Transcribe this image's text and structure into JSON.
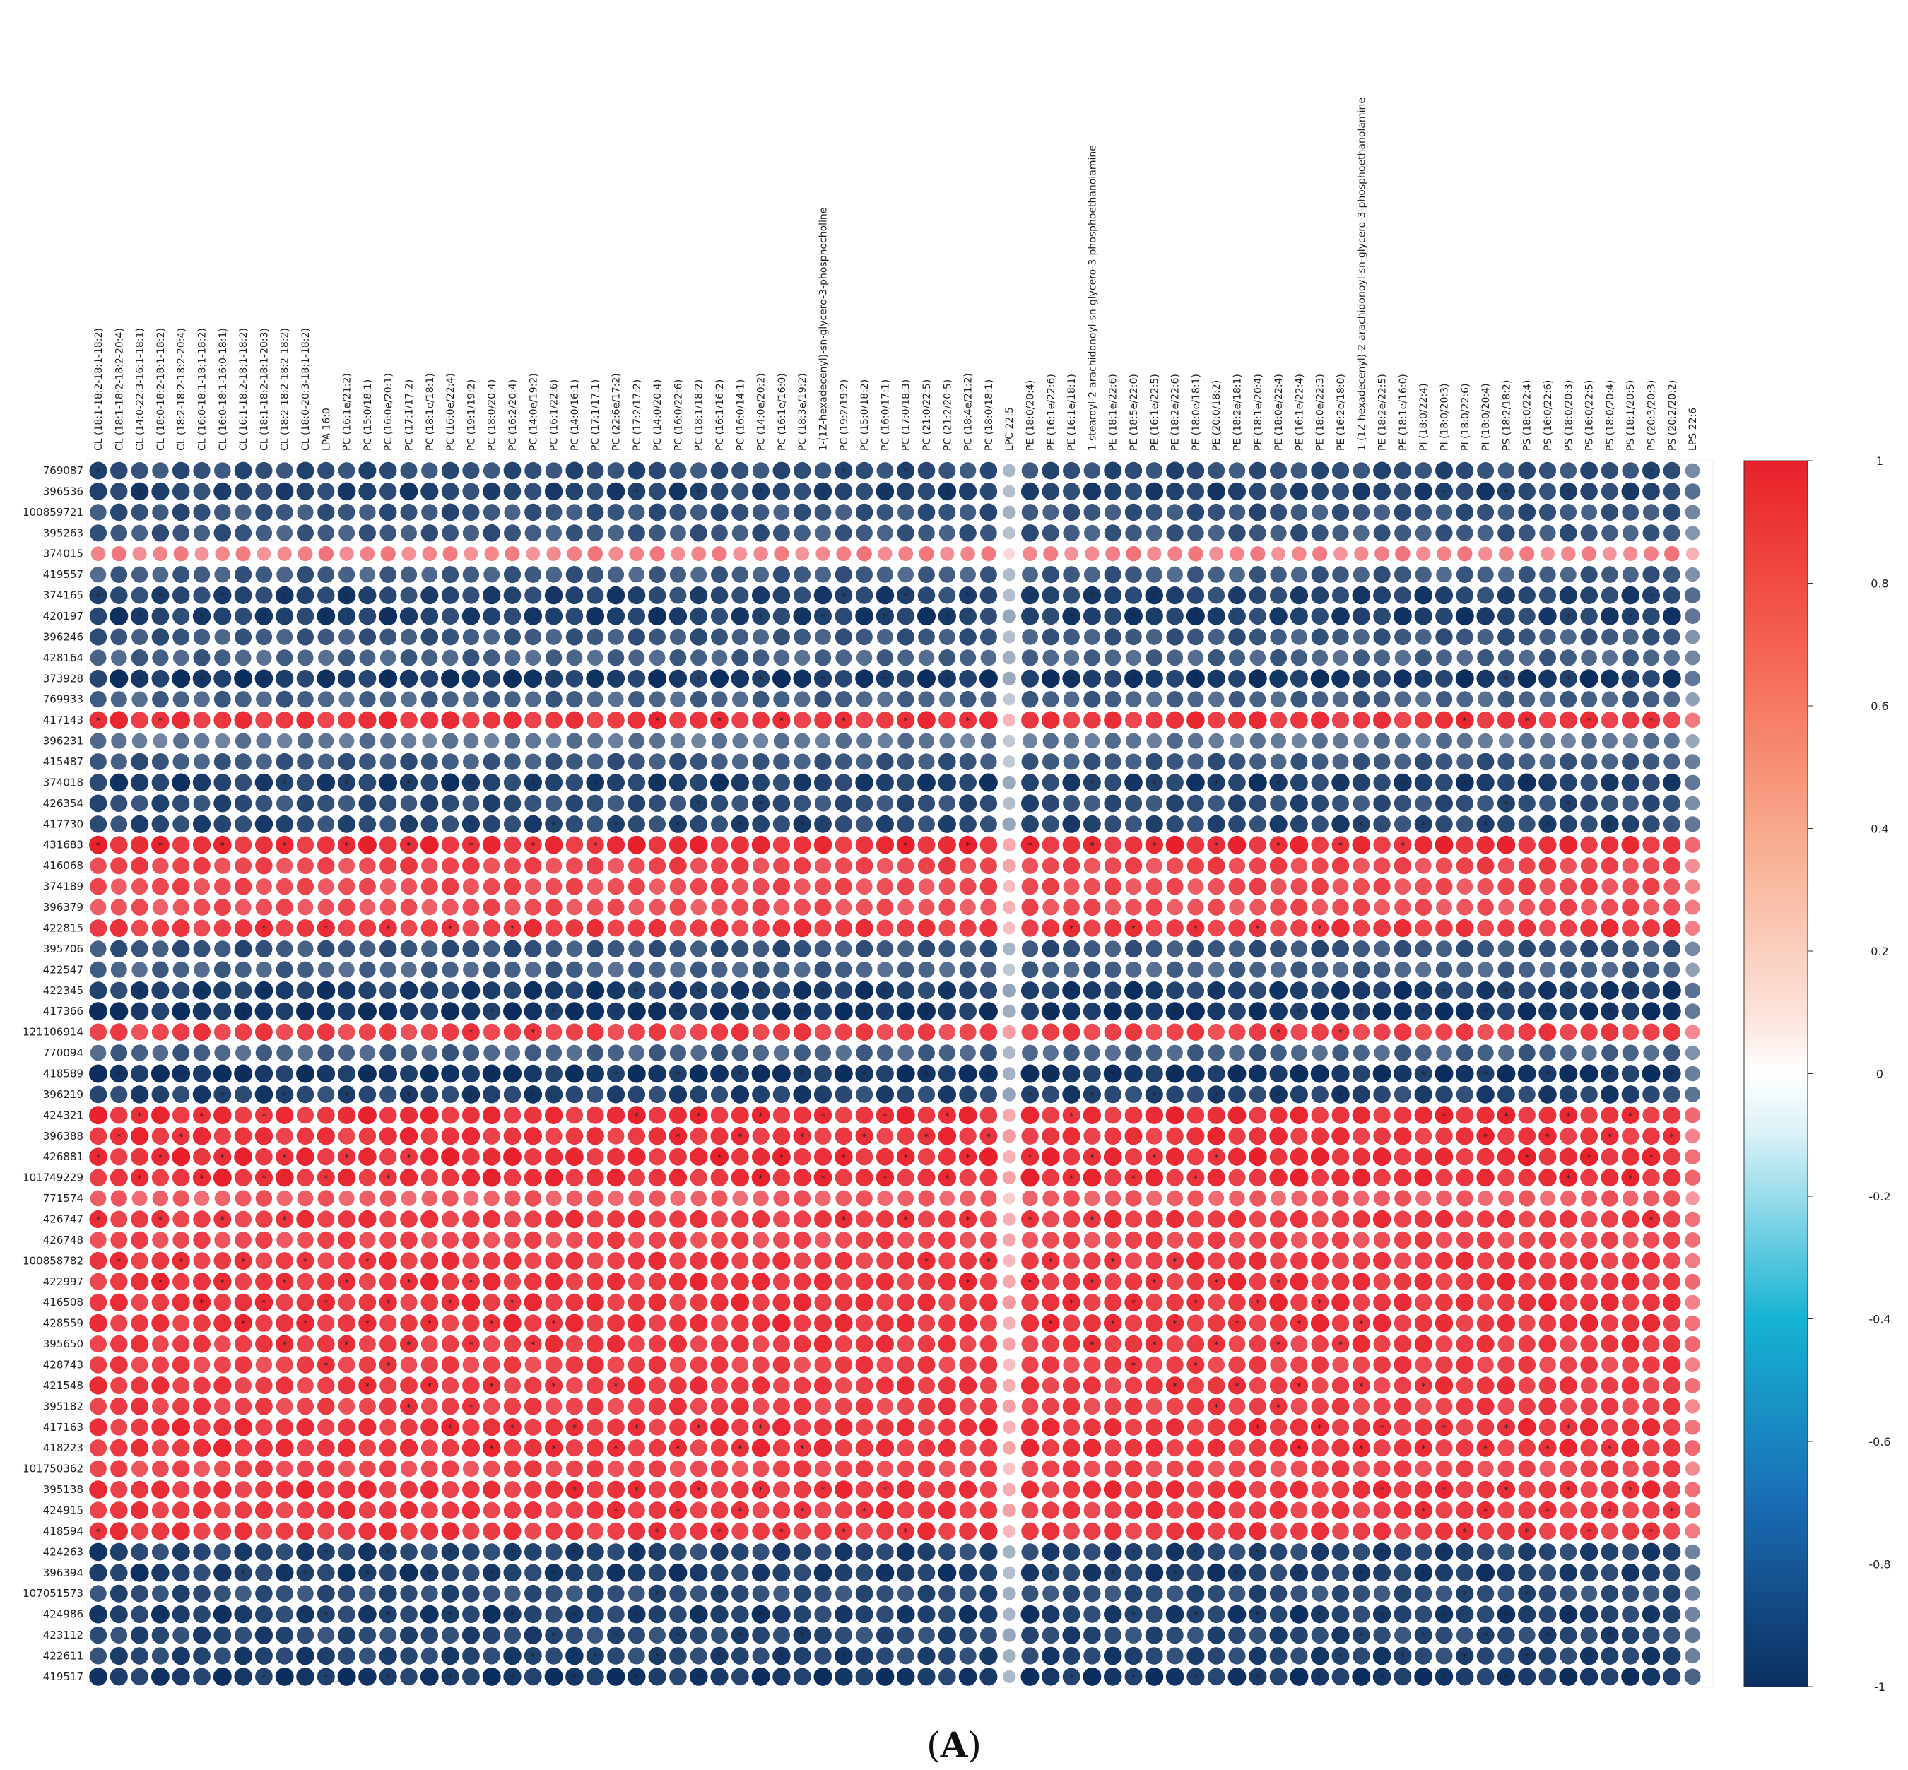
{
  "chart_data": {
    "type": "heatmap",
    "title": "",
    "caption": {
      "prefix": "(",
      "letter": "A",
      "suffix": ")"
    },
    "rows": [
      "769087",
      "396536",
      "100859721",
      "395263",
      "374015",
      "419557",
      "374165",
      "420197",
      "396246",
      "428164",
      "373928",
      "769933",
      "417143",
      "396231",
      "415487",
      "374018",
      "426354",
      "417730",
      "431683",
      "416068",
      "374189",
      "396379",
      "422815",
      "395706",
      "422547",
      "422345",
      "417366",
      "121106914",
      "770094",
      "418589",
      "396219",
      "424321",
      "396388",
      "426881",
      "101749229",
      "771574",
      "426747",
      "426748",
      "100858782",
      "422997",
      "416508",
      "428559",
      "395650",
      "428743",
      "421548",
      "395182",
      "417163",
      "418223",
      "101750362",
      "395138",
      "424915",
      "418594",
      "424263",
      "396394",
      "107051573",
      "424986",
      "423112",
      "422611",
      "419517"
    ],
    "columns": [
      "CL (18:1-18:2-18:1-18:2)",
      "CL (18:1-18:2-18:2-20:4)",
      "CL (14:0-22:3-16:1-18:1)",
      "CL (18:0-18:2-18:1-18:2)",
      "CL (18:2-18:2-18:2-20:4)",
      "CL (16:0-18:1-18:1-18:2)",
      "CL (16:0-18:1-16:0-18:1)",
      "CL (16:1-18:2-18:1-18:2)",
      "CL (18:1-18:2-18:1-20:3)",
      "CL (18:2-18:2-18:2-18:2)",
      "CL (18:0-20:3-18:1-18:2)",
      "LPA 16:0",
      "PC (16:1e/21:2)",
      "PC (15:0/18:1)",
      "PC (16:0e/20:1)",
      "PC (17:1/17:2)",
      "PC (18:1e/18:1)",
      "PC (16:0e/22:4)",
      "PC (19:1/19:2)",
      "PC (18:0/20:4)",
      "PC (16:2/20:4)",
      "PC (14:0e/19:2)",
      "PC (16:1/22:6)",
      "PC (14:0/16:1)",
      "PC (17:1/17:1)",
      "PC (22:6e/17:2)",
      "PC (17:2/17:2)",
      "PC (14:0/20:4)",
      "PC (16:0/22:6)",
      "PC (18:1/18:2)",
      "PC (16:1/16:2)",
      "PC (16:0/14:1)",
      "PC (14:0e/20:2)",
      "PC (16:1e/16:0)",
      "PC (18:3e/19:2)",
      "1-(1Z-hexadecenyl)-sn-glycero-3-phosphocholine",
      "PC (19:2/19:2)",
      "PC (15:0/18:2)",
      "PC (16:0/17:1)",
      "PC (17:0/18:3)",
      "PC (21:0/22:5)",
      "PC (21:2/20:5)",
      "PC (18:4e/21:2)",
      "PC (18:0/18:1)",
      "LPC 22:5",
      "PE (18:0/20:4)",
      "PE (16:1e/22:6)",
      "PE (16:1e/18:1)",
      "1-stearoyl-2-arachidonoyl-sn-glycero-3-phosphoethanolamine",
      "PE (18:1e/22:6)",
      "PE (18:5e/22:0)",
      "PE (16:1e/22:5)",
      "PE (18:2e/22:6)",
      "PE (18:0e/18:1)",
      "PE (20:0/18:2)",
      "PE (18:2e/18:1)",
      "PE (18:1e/20:4)",
      "PE (18:0e/22:4)",
      "PE (16:1e/22:4)",
      "PE (18:0e/22:3)",
      "PE (16:2e/18:0)",
      "1-(1Z-hexadecenyl)-2-arachidonoyl-sn-glycero-3-phosphoethanolamine",
      "PE (18:2e/22:5)",
      "PE (18:1e/16:0)",
      "PI (18:0/22:4)",
      "PI (18:0/20:3)",
      "PI (18:0/22:6)",
      "PI (18:0/20:4)",
      "PS (18:2/18:2)",
      "PS (18:0/22:4)",
      "PS (16:0/22:6)",
      "PS (18:0/20:3)",
      "PS (16:0/22:5)",
      "PS (18:0/20:4)",
      "PS (18:1/20:5)",
      "PS (20:3/20:3)",
      "PS (20:2/20:2)",
      "LPS 22:6"
    ],
    "row_values": [
      -0.85,
      -0.9,
      -0.82,
      -0.8,
      0.55,
      -0.78,
      -0.9,
      -0.92,
      -0.8,
      -0.75,
      -0.95,
      -0.75,
      0.9,
      -0.65,
      -0.8,
      -0.92,
      -0.85,
      -0.88,
      0.93,
      0.82,
      0.8,
      0.78,
      0.88,
      -0.82,
      -0.75,
      -0.93,
      -0.97,
      0.85,
      -0.75,
      -0.97,
      -0.9,
      0.92,
      0.9,
      0.93,
      0.92,
      0.72,
      0.88,
      0.82,
      0.88,
      0.9,
      0.9,
      0.9,
      0.88,
      0.85,
      0.88,
      0.85,
      0.9,
      0.9,
      0.82,
      0.9,
      0.88,
      0.88,
      -0.9,
      -0.92,
      -0.85,
      -0.92,
      -0.88,
      -0.9,
      -0.95
    ],
    "column_factors": [
      1,
      1,
      1,
      1,
      1,
      1,
      1,
      1,
      1,
      1,
      1,
      1,
      1,
      1,
      1,
      1,
      1,
      1,
      1,
      1,
      1,
      1,
      1,
      1,
      1,
      1,
      1,
      1,
      1,
      1,
      1,
      1,
      1,
      1,
      1,
      1,
      1,
      1,
      1,
      1,
      1,
      1,
      1,
      1,
      0.42,
      1,
      1,
      1,
      1,
      1,
      1,
      1,
      1,
      1,
      1,
      1,
      1,
      1,
      1,
      1,
      1,
      1,
      1,
      1,
      1,
      1,
      1,
      1,
      1,
      1,
      1,
      1,
      1,
      1,
      1,
      1,
      1,
      0.7
    ],
    "color_scale": {
      "min": -1,
      "max": 1,
      "low": "#0b2e5f",
      "mid": "#ffffff",
      "high": "#e8202a"
    },
    "colorbar_ticks": [
      "1",
      "0.8",
      "0.6",
      "0.4",
      "0.2",
      "0",
      "-0.2",
      "-0.4",
      "-0.6",
      "-0.8",
      "-1"
    ],
    "significance_marker": "*"
  }
}
